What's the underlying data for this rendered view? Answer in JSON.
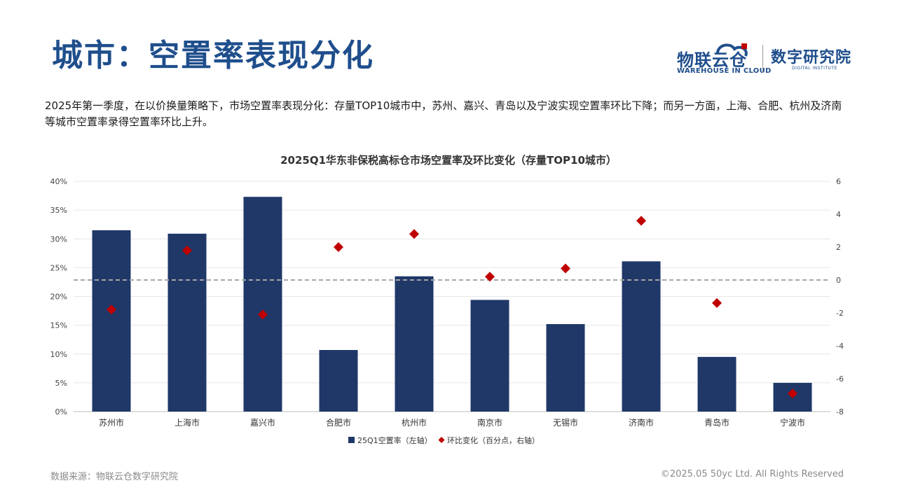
{
  "page": {
    "title": "城市：空置率表现分化",
    "description": "2025年第一季度，在以价换量策略下，市场空置率表现分化：存量TOP10城市中，苏州、嘉兴、青岛以及宁波实现空置率环比下降；而另一方面，上海、合肥、杭州及济南等城市空置率录得空置率环比上升。",
    "logo1_main": "物联云仓",
    "logo1_sub": "WAREHOUSE IN CLOUD",
    "logo2_main": "数字研究院",
    "logo2_sub": "DIGITAL INSTITUTE",
    "footer_source": "数据来源：物联云仓数字研究院",
    "footer_copyright": "©2025.05 50yc Ltd. All Rights Reserved"
  },
  "chart_data": {
    "type": "bar",
    "title": "2025Q1华东非保税高标仓市场空置率及环比变化（存量TOP10城市）",
    "categories": [
      "苏州市",
      "上海市",
      "嘉兴市",
      "合肥市",
      "杭州市",
      "南京市",
      "无锡市",
      "济南市",
      "青岛市",
      "宁波市"
    ],
    "series": [
      {
        "name": "25Q1空置率（左轴）",
        "type": "bar",
        "axis": "left",
        "color": "#1f3868",
        "values": [
          31.5,
          30.9,
          37.3,
          10.7,
          23.5,
          19.4,
          15.2,
          26.1,
          9.5,
          5.0
        ]
      },
      {
        "name": "环比变化（百分点，右轴）",
        "type": "scatter",
        "marker": "diamond",
        "axis": "right",
        "color": "#c00000",
        "values": [
          -1.8,
          1.8,
          -2.1,
          2.0,
          2.8,
          0.2,
          0.7,
          3.6,
          -1.4,
          -6.9
        ]
      }
    ],
    "y_left": {
      "min": 0,
      "max": 40,
      "step": 5,
      "ticks": [
        "0%",
        "5%",
        "10%",
        "15%",
        "20%",
        "25%",
        "30%",
        "35%",
        "40%"
      ]
    },
    "y_right": {
      "min": -8,
      "max": 6,
      "step": 2,
      "ticks": [
        "-8",
        "-6",
        "-4",
        "-2",
        "0",
        "2",
        "4",
        "6"
      ]
    },
    "grid": true,
    "zero_line_right": {
      "value": 0,
      "style": "dashed",
      "color": "#a6a6a6"
    },
    "legend_position": "bottom"
  }
}
